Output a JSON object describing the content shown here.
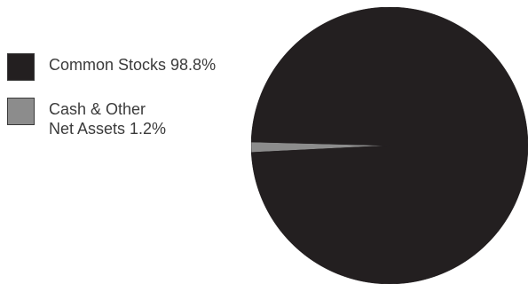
{
  "chart_data": {
    "type": "pie",
    "title": "",
    "slices": [
      {
        "label": "Common Stocks 98.8%",
        "value": 98.8,
        "color": "#231f20"
      },
      {
        "label": "Cash & Other\nNet Assets 1.2%",
        "value": 1.2,
        "color": "#8c8c8c"
      }
    ],
    "legend_position": "left"
  }
}
